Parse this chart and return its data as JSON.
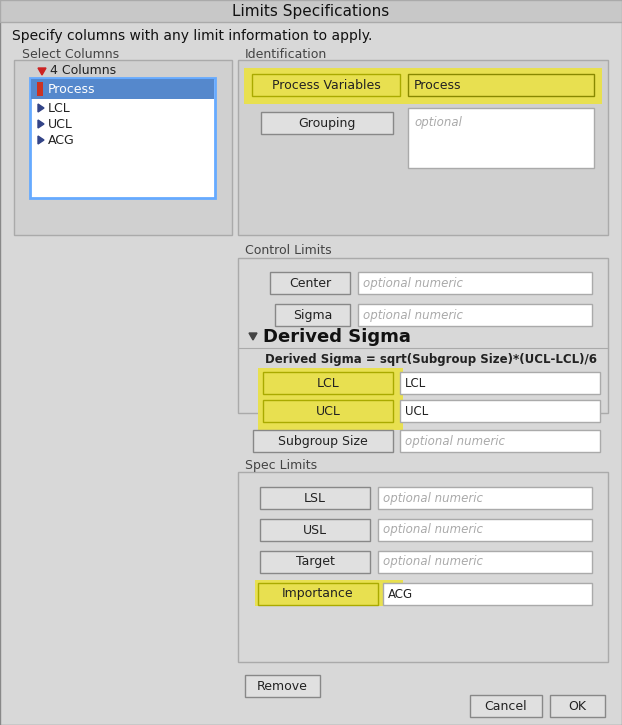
{
  "title": "Limits Specifications",
  "subtitle": "Specify columns with any limit information to apply.",
  "bg_color": "#d8d8d8",
  "panel_bg": "#e8e8e8",
  "white": "#ffffff",
  "yellow_bg": "#e8e050",
  "yellow_light": "#f0ea80",
  "border_color": "#999999",
  "text_color": "#222222",
  "placeholder_color": "#aaaaaa",
  "blue_border": "#66aaff",
  "select_columns_label": "Select Columns",
  "identification_label": "Identification",
  "control_limits_label": "Control Limits",
  "derived_sigma_label": "Derived Sigma",
  "derived_sigma_formula": "Derived Sigma = sqrt(Subgroup Size)*(UCL-LCL)/6",
  "spec_limits_label": "Spec Limits"
}
